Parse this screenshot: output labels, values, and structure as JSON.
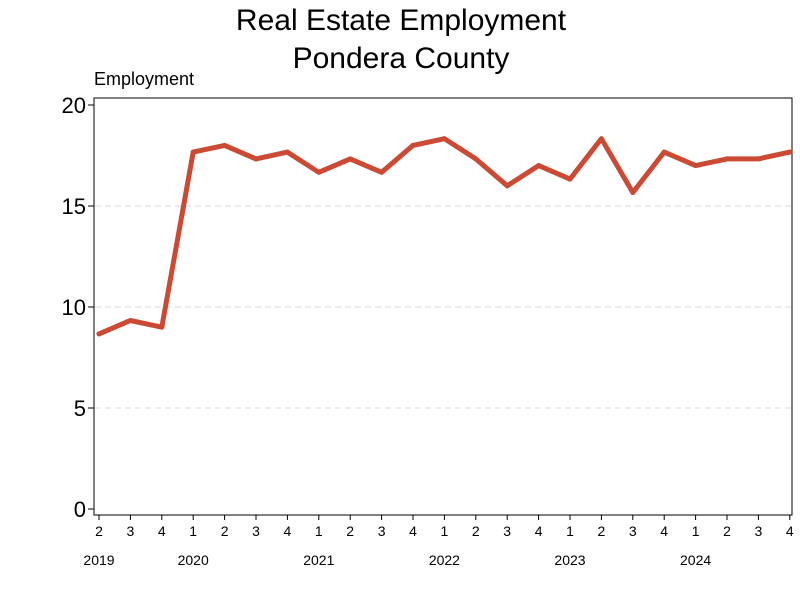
{
  "chart_data": {
    "type": "line",
    "title_line1": "Real Estate Employment",
    "title_line2": "Pondera County",
    "ylabel": "Employment",
    "xlabel": "",
    "ylim": [
      0,
      20
    ],
    "yticks": [
      0,
      5,
      10,
      15,
      20
    ],
    "grid": "horizontal dashed",
    "legend": "none",
    "x_quarters": [
      "2",
      "3",
      "4",
      "1",
      "2",
      "3",
      "4",
      "1",
      "2",
      "3",
      "4",
      "1",
      "2",
      "3",
      "4",
      "1",
      "2",
      "3",
      "4",
      "1",
      "2",
      "3",
      "4"
    ],
    "x_years": [
      {
        "label": "2019",
        "quarter_index": 0
      },
      {
        "label": "2020",
        "quarter_index": 3
      },
      {
        "label": "2021",
        "quarter_index": 7
      },
      {
        "label": "2022",
        "quarter_index": 11
      },
      {
        "label": "2023",
        "quarter_index": 15
      },
      {
        "label": "2024",
        "quarter_index": 19
      }
    ],
    "series": [
      {
        "color": "#cc4a33",
        "values": [
          8.67,
          9.33,
          9.0,
          17.67,
          18.0,
          17.33,
          17.67,
          16.67,
          17.33,
          16.67,
          18.0,
          18.33,
          17.33,
          16.0,
          17.0,
          16.33,
          18.33,
          15.67,
          17.67,
          17.0,
          17.33,
          17.33,
          17.67
        ]
      }
    ]
  }
}
